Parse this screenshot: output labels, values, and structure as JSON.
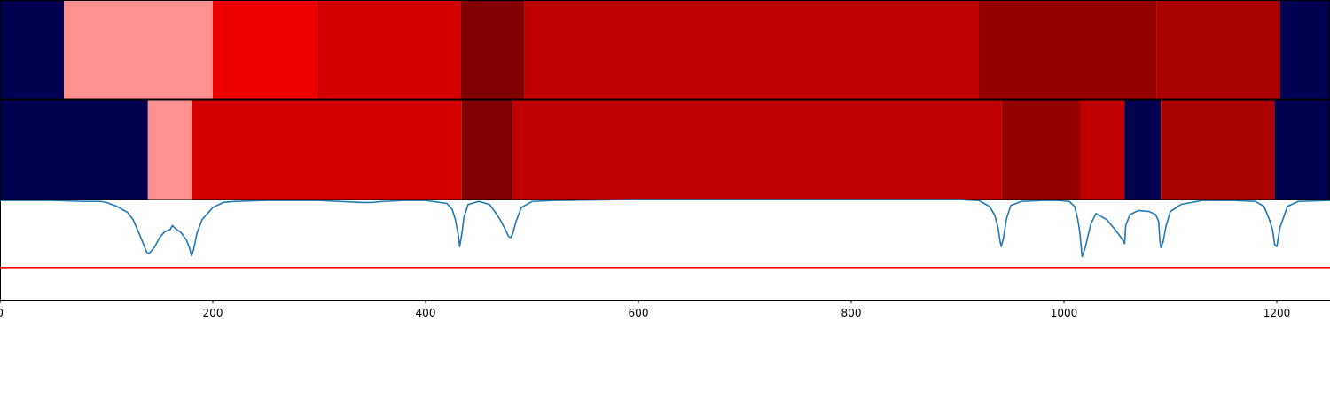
{
  "chart_data": [
    {
      "type": "heatmap",
      "xlim": [
        0,
        1250
      ],
      "segments": [
        {
          "start": 0,
          "end": 60,
          "color": "#000050"
        },
        {
          "start": 60,
          "end": 200,
          "color": "#ff9090"
        },
        {
          "start": 200,
          "end": 298,
          "color": "#ee0000"
        },
        {
          "start": 298,
          "end": 433,
          "color": "#d40000"
        },
        {
          "start": 433,
          "end": 493,
          "color": "#800000"
        },
        {
          "start": 493,
          "end": 920,
          "color": "#c00000"
        },
        {
          "start": 920,
          "end": 1087,
          "color": "#960000"
        },
        {
          "start": 1087,
          "end": 1203,
          "color": "#aa0000"
        },
        {
          "start": 1203,
          "end": 1250,
          "color": "#000050"
        }
      ]
    },
    {
      "type": "heatmap",
      "xlim": [
        0,
        1250
      ],
      "segments": [
        {
          "start": 0,
          "end": 139,
          "color": "#000050"
        },
        {
          "start": 139,
          "end": 180,
          "color": "#ff9090"
        },
        {
          "start": 180,
          "end": 434,
          "color": "#d40000"
        },
        {
          "start": 434,
          "end": 482,
          "color": "#800000"
        },
        {
          "start": 482,
          "end": 941,
          "color": "#c00000"
        },
        {
          "start": 941,
          "end": 1015,
          "color": "#960000"
        },
        {
          "start": 1015,
          "end": 1057,
          "color": "#c00000"
        },
        {
          "start": 1057,
          "end": 1091,
          "color": "#000050"
        },
        {
          "start": 1091,
          "end": 1198,
          "color": "#aa0000"
        },
        {
          "start": 1198,
          "end": 1250,
          "color": "#000050"
        }
      ]
    },
    {
      "type": "line",
      "xlim": [
        0,
        1250
      ],
      "ylim": [
        0,
        1
      ],
      "grid": false,
      "xticks": [
        0,
        200,
        400,
        600,
        800,
        1000,
        1200
      ],
      "xtick_labels": [
        "0",
        "200",
        "400",
        "600",
        "800",
        "1000",
        "1200"
      ],
      "series": [
        {
          "color": "#1f77b4",
          "x": [
            0,
            50,
            80,
            95,
            100,
            110,
            120,
            125,
            130,
            135,
            138,
            140,
            145,
            150,
            155,
            160,
            162,
            165,
            170,
            175,
            178,
            180,
            182,
            185,
            190,
            200,
            210,
            220,
            250,
            300,
            340,
            350,
            360,
            380,
            400,
            420,
            425,
            428,
            431,
            432,
            434,
            436,
            440,
            450,
            460,
            465,
            470,
            475,
            478,
            480,
            482,
            485,
            490,
            500,
            520,
            600,
            700,
            800,
            900,
            920,
            930,
            935,
            938,
            940,
            941,
            943,
            946,
            950,
            960,
            980,
            995,
            1005,
            1010,
            1013,
            1015,
            1017,
            1020,
            1025,
            1030,
            1040,
            1048,
            1053,
            1056,
            1057,
            1058,
            1062,
            1070,
            1080,
            1086,
            1089,
            1090,
            1091,
            1093,
            1096,
            1100,
            1110,
            1130,
            1160,
            1180,
            1188,
            1193,
            1196,
            1198,
            1200,
            1203,
            1210,
            1220,
            1250
          ],
          "y": [
            0.99,
            0.99,
            0.98,
            0.98,
            0.97,
            0.93,
            0.87,
            0.8,
            0.68,
            0.55,
            0.47,
            0.46,
            0.52,
            0.62,
            0.68,
            0.7,
            0.74,
            0.71,
            0.67,
            0.6,
            0.52,
            0.44,
            0.5,
            0.66,
            0.8,
            0.92,
            0.97,
            0.98,
            0.99,
            0.99,
            0.97,
            0.97,
            0.98,
            0.99,
            0.99,
            0.96,
            0.9,
            0.8,
            0.63,
            0.53,
            0.65,
            0.82,
            0.95,
            0.98,
            0.95,
            0.88,
            0.8,
            0.7,
            0.63,
            0.62,
            0.66,
            0.78,
            0.92,
            0.98,
            0.99,
            1.0,
            1.0,
            1.0,
            1.0,
            0.99,
            0.93,
            0.84,
            0.72,
            0.58,
            0.53,
            0.61,
            0.81,
            0.94,
            0.98,
            0.99,
            0.99,
            0.98,
            0.93,
            0.8,
            0.66,
            0.43,
            0.52,
            0.75,
            0.86,
            0.8,
            0.7,
            0.63,
            0.58,
            0.56,
            0.74,
            0.85,
            0.89,
            0.88,
            0.85,
            0.78,
            0.6,
            0.52,
            0.57,
            0.74,
            0.88,
            0.95,
            0.99,
            0.99,
            0.98,
            0.93,
            0.8,
            0.7,
            0.55,
            0.53,
            0.72,
            0.93,
            0.98,
            0.99
          ]
        },
        {
          "color": "#ff0000",
          "x": [
            0,
            1250
          ],
          "y": [
            0.32,
            0.32
          ]
        }
      ]
    }
  ]
}
